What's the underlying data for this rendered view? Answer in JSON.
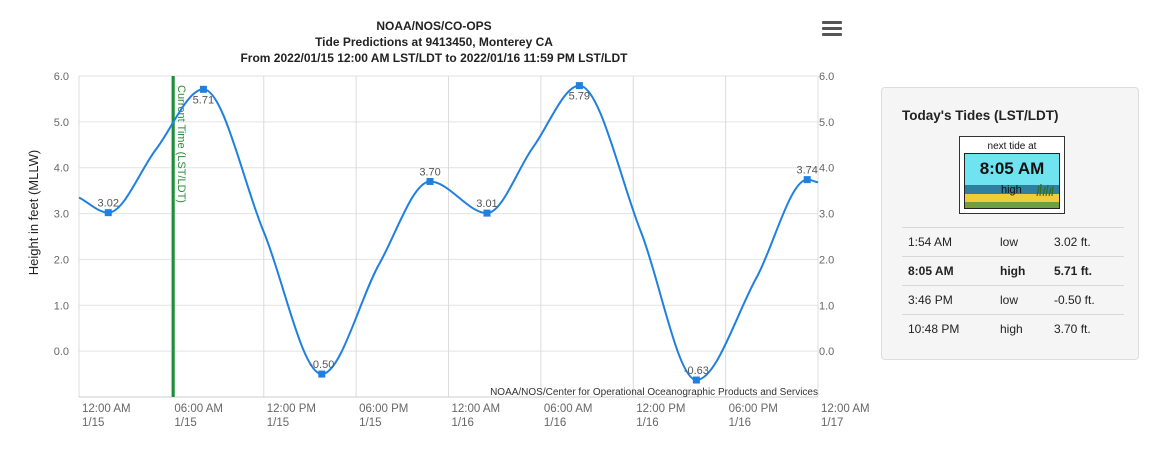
{
  "chart_data": {
    "type": "line",
    "title_lines": [
      "NOAA/NOS/CO-OPS",
      "Tide Predictions at 9413450, Monterey CA",
      "From 2022/01/15 12:00 AM LST/LDT to 2022/01/16 11:59 PM LST/LDT"
    ],
    "ylabel": "Height in feet (MLLW)",
    "xlabel": "",
    "ylim": [
      -1.0,
      6.0
    ],
    "xlim_hours": [
      0,
      48
    ],
    "y_ticks": [
      "6.0",
      "5.0",
      "4.0",
      "3.0",
      "2.0",
      "1.0",
      "0.0"
    ],
    "y_tick_values": [
      6.0,
      5.0,
      4.0,
      3.0,
      2.0,
      1.0,
      0.0
    ],
    "x_ticks": [
      {
        "time": "12:00 AM",
        "date": "1/15",
        "hour": 0
      },
      {
        "time": "06:00 AM",
        "date": "1/15",
        "hour": 6
      },
      {
        "time": "12:00 PM",
        "date": "1/15",
        "hour": 12
      },
      {
        "time": "06:00 PM",
        "date": "1/15",
        "hour": 18
      },
      {
        "time": "12:00 AM",
        "date": "1/16",
        "hour": 24
      },
      {
        "time": "06:00 AM",
        "date": "1/16",
        "hour": 30
      },
      {
        "time": "12:00 PM",
        "date": "1/16",
        "hour": 36
      },
      {
        "time": "06:00 PM",
        "date": "1/16",
        "hour": 42
      },
      {
        "time": "12:00 AM",
        "date": "1/17",
        "hour": 48
      }
    ],
    "extremes": [
      {
        "hour": 1.9,
        "value": 3.02,
        "label": "3.02"
      },
      {
        "hour": 8.08,
        "value": 5.71,
        "label": "5.71"
      },
      {
        "hour": 15.77,
        "value": -0.5,
        "label": "-0.50"
      },
      {
        "hour": 22.8,
        "value": 3.7,
        "label": "3.70"
      },
      {
        "hour": 26.5,
        "value": 3.01,
        "label": "3.01"
      },
      {
        "hour": 32.5,
        "value": 5.79,
        "label": "5.79"
      },
      {
        "hour": 40.1,
        "value": -0.63,
        "label": "-0.63"
      },
      {
        "hour": 47.3,
        "value": 3.74,
        "label": "3.74"
      }
    ],
    "series": [
      {
        "x_hours": [
          0,
          1.9,
          5.0,
          8.08,
          12.0,
          15.77,
          19.5,
          22.8,
          26.5,
          29.5,
          32.5,
          36.5,
          40.1,
          44.0,
          47.3,
          48.0
        ],
        "values": [
          3.35,
          3.02,
          4.4,
          5.71,
          2.6,
          -0.5,
          1.9,
          3.7,
          3.01,
          4.45,
          5.79,
          2.6,
          -0.63,
          1.6,
          3.74,
          3.68
        ],
        "color": "#1f80e0"
      }
    ],
    "current_time": {
      "hour": 6.12,
      "label": "Current Time (LST/LDT)",
      "color": "#1e8c3a"
    },
    "credit": "NOAA/NOS/Center for Operational Oceanographic Products and Services",
    "grid": true
  },
  "menu": {
    "icon": "hamburger-menu-icon"
  },
  "tides_panel": {
    "title": "Today's Tides (LST/LDT)",
    "next_tide": {
      "caption": "next tide at",
      "time": "8:05 AM",
      "type": "high"
    },
    "rows": [
      {
        "time": "1:54 AM",
        "type": "low",
        "height": "3.02 ft."
      },
      {
        "time": "8:05 AM",
        "type": "high",
        "height": "5.71 ft."
      },
      {
        "time": "3:46 PM",
        "type": "low",
        "height": "-0.50 ft."
      },
      {
        "time": "10:48 PM",
        "type": "high",
        "height": "3.70 ft."
      }
    ],
    "highlight_row": 1
  }
}
